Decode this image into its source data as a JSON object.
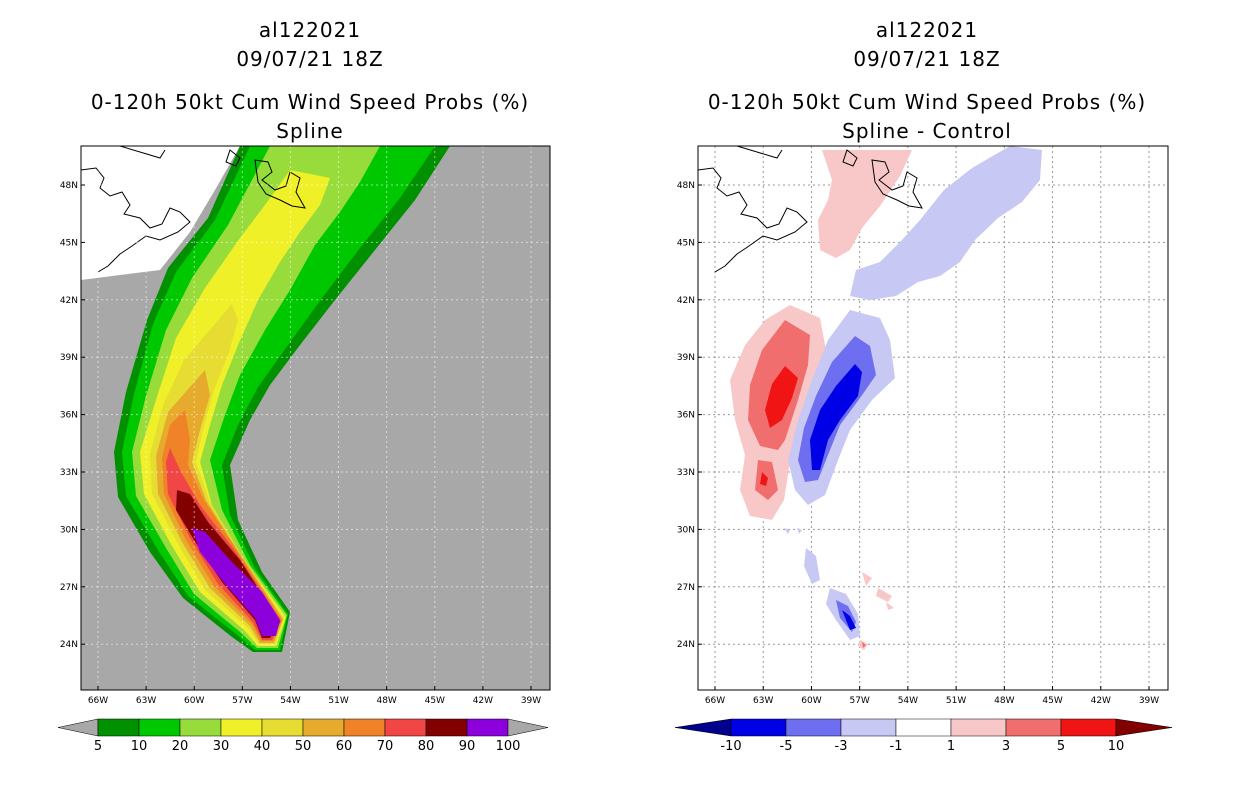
{
  "panels": {
    "left": {
      "storm_id": "al122021",
      "datetime": "09/07/21 18Z",
      "product": "0-120h 50kt Cum Wind Speed Probs (%)",
      "variant": "Spline",
      "background_color": "#a8a8a8",
      "colorbar": {
        "labels": [
          "5",
          "10",
          "20",
          "30",
          "40",
          "50",
          "60",
          "70",
          "80",
          "90",
          "100"
        ],
        "colors": [
          "#009000",
          "#00c800",
          "#98dc3c",
          "#f0f028",
          "#e6dc32",
          "#e6aa2c",
          "#f08228",
          "#f04646",
          "#820000",
          "#8c00dc"
        ],
        "end_color": "#a8a8a8"
      }
    },
    "right": {
      "storm_id": "al122021",
      "datetime": "09/07/21 18Z",
      "product": "0-120h 50kt Cum Wind Speed Probs (%)",
      "variant": "Spline - Control",
      "background_color": "#ffffff",
      "colorbar": {
        "labels": [
          "-10",
          "-5",
          "-3",
          "-1",
          "1",
          "3",
          "5",
          "10"
        ],
        "colors": [
          "#0000e6",
          "#6e6ef0",
          "#c8c8f4",
          "#ffffff",
          "#f8c8c8",
          "#f06e6e",
          "#f01414"
        ],
        "low_end_color": "#00008c",
        "high_end_color": "#820000"
      }
    }
  },
  "axes": {
    "lat_ticks": [
      "48N",
      "45N",
      "42N",
      "39N",
      "36N",
      "33N",
      "30N",
      "27N",
      "24N"
    ],
    "lon_ticks": [
      "66W",
      "63W",
      "60W",
      "57W",
      "54W",
      "51W",
      "48W",
      "45W",
      "42W",
      "39W"
    ]
  }
}
